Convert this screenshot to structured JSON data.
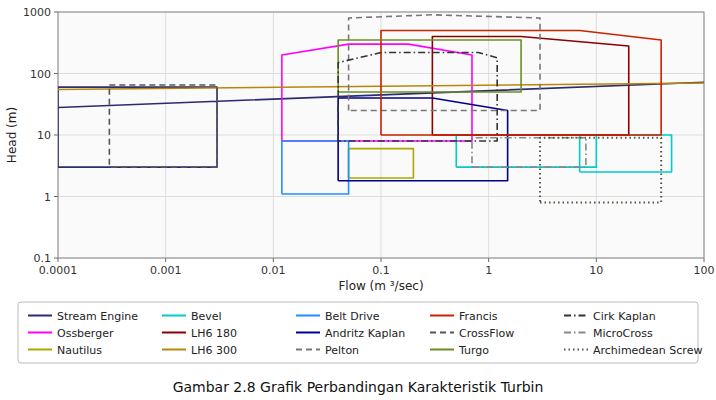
{
  "chart_data": {
    "type": "line",
    "title": "Gambar 2.8 Grafik Perbandingan Karakteristik Turbin",
    "x_label": "Flow (m ³/sec)",
    "y_label": "Head (m)",
    "log": true,
    "grid": true,
    "legend": "bottom",
    "xlim": [
      0.0001,
      100
    ],
    "ylim": [
      0.1,
      1000
    ],
    "xticks": [
      0.0001,
      0.001,
      0.01,
      0.1,
      1,
      10,
      100
    ],
    "yticks": [
      0.1,
      1,
      10,
      100,
      1000
    ],
    "series": [
      {
        "name": "Stream Engine",
        "color": "#2b2b6e",
        "line_style": "solid",
        "x": [
          0.0001,
          0.003,
          0.003,
          0.0001,
          0.0001,
          null,
          0.0001,
          100
        ],
        "values": [
          60,
          60,
          3,
          3,
          60,
          null,
          28,
          72
        ]
      },
      {
        "name": "Ossberger",
        "color": "#ff00ff",
        "line_style": "solid",
        "x": [
          0.012,
          0.012,
          0.05,
          0.18,
          0.7,
          0.7,
          0.18,
          0.05,
          0.012
        ],
        "values": [
          8,
          200,
          300,
          300,
          200,
          8,
          8,
          8,
          8
        ]
      },
      {
        "name": "Nautilus",
        "color": "#aaaa00",
        "line_style": "solid",
        "x": [
          0.05,
          0.2,
          0.2,
          0.05,
          0.05
        ],
        "values": [
          2.0,
          2.0,
          6,
          6,
          2.0
        ]
      },
      {
        "name": "Bevel",
        "color": "#00cccc",
        "line_style": "solid",
        "x": [
          0.5,
          10,
          10,
          0.5,
          0.5,
          null,
          7,
          7,
          15,
          50,
          50,
          30,
          7
        ],
        "values": [
          3,
          3,
          10,
          10,
          3,
          null,
          2.5,
          10,
          10,
          10,
          2.5,
          2.5,
          2.5
        ]
      },
      {
        "name": "LH6 180",
        "color": "#8b0000",
        "line_style": "solid",
        "x": [
          0.3,
          0.3,
          2.0,
          20,
          20,
          2.0,
          0.3
        ],
        "values": [
          10,
          400,
          400,
          280,
          10,
          10,
          10
        ]
      },
      {
        "name": "LH6 300",
        "color": "#b8860b",
        "line_style": "solid",
        "x": [
          0.0001,
          100
        ],
        "values": [
          55,
          70
        ]
      },
      {
        "name": "Belt Drive",
        "color": "#1e90ff",
        "line_style": "solid",
        "x": [
          0.012,
          0.05,
          0.05,
          0.012,
          0.012
        ],
        "values": [
          1.1,
          1.1,
          8,
          8,
          1.1
        ]
      },
      {
        "name": "Andritz Kaplan",
        "color": "#00008b",
        "line_style": "solid",
        "x": [
          0.04,
          0.04,
          0.3,
          1.5,
          1.5,
          0.04
        ],
        "values": [
          1.8,
          40,
          40,
          25,
          1.8,
          1.8
        ]
      },
      {
        "name": "Pelton",
        "color": "#777777",
        "line_style": "dashed",
        "x": [
          0.05,
          0.05,
          0.3,
          3.0,
          3.0,
          0.2,
          0.05
        ],
        "values": [
          25,
          800,
          900,
          800,
          25,
          25,
          25
        ]
      },
      {
        "name": "Francis",
        "color": "#cc2200",
        "line_style": "solid",
        "x": [
          0.1,
          0.1,
          0.5,
          7,
          40,
          40,
          5.0,
          0.1
        ],
        "values": [
          10,
          500,
          500,
          500,
          350,
          10,
          10,
          10
        ]
      },
      {
        "name": "CrossFlow",
        "color": "#555555",
        "line_style": "dashed",
        "x": [
          0.0003,
          0.003,
          0.003,
          0.0003,
          0.0003
        ],
        "values": [
          65,
          65,
          3,
          3,
          65
        ]
      },
      {
        "name": "Turgo",
        "color": "#6b8e23",
        "line_style": "solid",
        "x": [
          0.04,
          2.0,
          2.0,
          0.04,
          0.04
        ],
        "values": [
          50,
          50,
          350,
          350,
          50
        ]
      },
      {
        "name": "Cirk Kaplan",
        "color": "#333333",
        "line_style": "dashdot",
        "x": [
          0.04,
          0.04,
          0.1,
          0.8,
          1.2,
          1.2,
          0.3,
          0.04
        ],
        "values": [
          8,
          150,
          220,
          220,
          180,
          8,
          8,
          8
        ]
      },
      {
        "name": "MicroCross",
        "color": "#888888",
        "line_style": "dashdot",
        "x": [
          0.7,
          8,
          8,
          0.7,
          0.7
        ],
        "values": [
          3,
          3,
          9,
          9,
          3
        ]
      },
      {
        "name": "Archimedean Screw",
        "color": "#555544",
        "line_style": "dotted",
        "x": [
          3,
          40,
          40,
          3,
          3
        ],
        "values": [
          0.8,
          0.8,
          9,
          9,
          0.8
        ]
      }
    ]
  }
}
